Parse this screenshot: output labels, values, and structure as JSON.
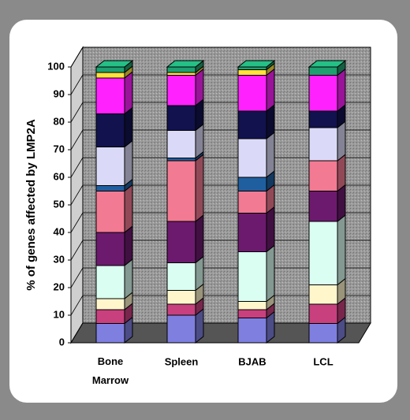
{
  "chart_data": {
    "type": "stacked-bar-3d",
    "y_label": "% of genes affected by LMP2A",
    "categories": [
      "Bone Marrow",
      "Spleen",
      "BJAB",
      "LCL"
    ],
    "ylim": [
      0,
      100
    ],
    "yticks": [
      0,
      10,
      20,
      30,
      40,
      50,
      60,
      70,
      80,
      90,
      100
    ],
    "grid": true,
    "series": [
      {
        "color": "#7f7fe0",
        "values": [
          7,
          10,
          9,
          7
        ]
      },
      {
        "color": "#c8407e",
        "values": [
          5,
          4,
          3,
          7
        ]
      },
      {
        "color": "#fff6cc",
        "values": [
          4,
          5,
          3,
          7
        ]
      },
      {
        "color": "#dafff2",
        "values": [
          12,
          10,
          18,
          23
        ]
      },
      {
        "color": "#6c1a6e",
        "values": [
          12,
          15,
          14,
          11
        ]
      },
      {
        "color": "#f27a92",
        "values": [
          15,
          22,
          8,
          11
        ]
      },
      {
        "color": "#1f5fa0",
        "values": [
          2,
          1,
          5,
          0
        ]
      },
      {
        "color": "#dadaf8",
        "values": [
          14,
          10,
          14,
          12
        ]
      },
      {
        "color": "#12124e",
        "values": [
          12,
          9,
          10,
          6
        ]
      },
      {
        "color": "#ff22ff",
        "values": [
          13,
          11,
          13,
          13
        ]
      },
      {
        "color": "#ffe23c",
        "values": [
          2,
          1,
          2,
          0
        ]
      },
      {
        "color": "#1fa070",
        "values": [
          2,
          2,
          1,
          3
        ]
      }
    ]
  }
}
